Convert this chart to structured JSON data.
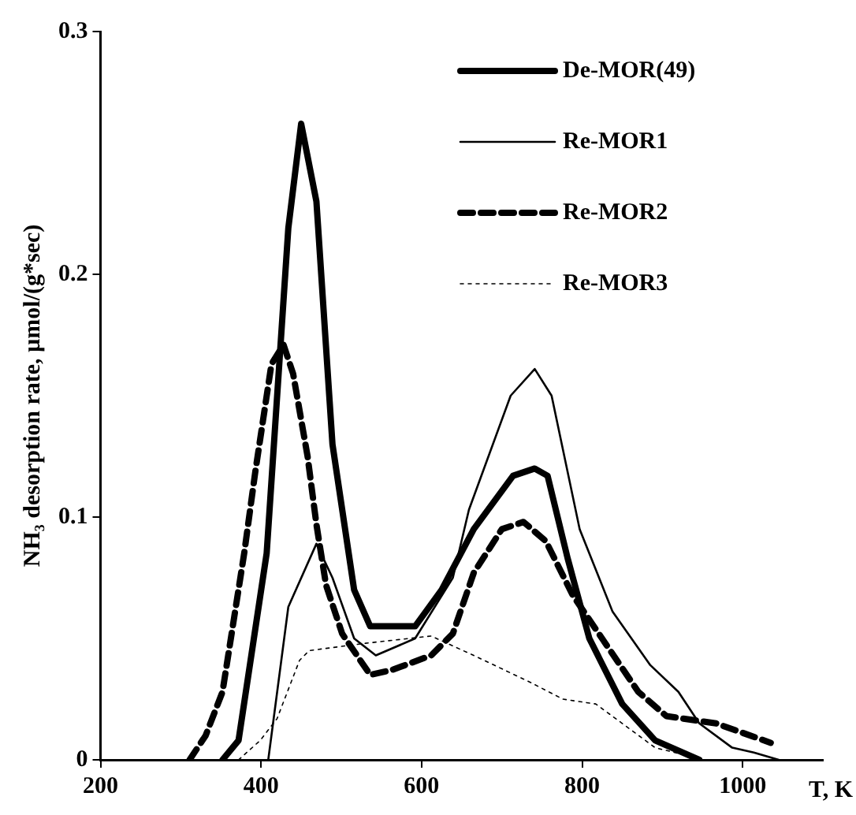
{
  "chart_data": {
    "type": "line",
    "xlabel": "T, K",
    "ylabel": "NH₃ desorption rate, µmol/(g*sec)",
    "xlim": [
      200,
      1100
    ],
    "xticks": [
      200,
      400,
      600,
      800,
      1000
    ],
    "ylim": [
      0,
      0.3
    ],
    "yticks": [
      0,
      0.1,
      0.2,
      0.3
    ],
    "grid": false,
    "legend": "top right",
    "marker": "none",
    "series": [
      {
        "name": "De-MOR(49)",
        "color": "#000000",
        "line_style": "solid",
        "x": [
          352,
          372,
          407,
          434,
          450,
          469,
          489,
          516,
          536,
          592,
          625,
          665,
          714,
          741,
          757,
          782,
          809,
          850,
          891,
          946
        ],
        "values": [
          0,
          0.008,
          0.085,
          0.219,
          0.262,
          0.23,
          0.13,
          0.07,
          0.055,
          0.055,
          0.07,
          0.095,
          0.117,
          0.12,
          0.117,
          0.083,
          0.05,
          0.023,
          0.008,
          0
        ]
      },
      {
        "name": "Re-MOR1",
        "color": "#000000",
        "line_style": "solid",
        "x": [
          409,
          434,
          469,
          489,
          516,
          543,
          592,
          639,
          659,
          711,
          741,
          762,
          797,
          838,
          885,
          920,
          946,
          987,
          1014,
          1045
        ],
        "values": [
          0,
          0.063,
          0.089,
          0.075,
          0.05,
          0.043,
          0.05,
          0.075,
          0.103,
          0.15,
          0.161,
          0.15,
          0.095,
          0.061,
          0.039,
          0.028,
          0.015,
          0.005,
          0.003,
          0
        ]
      },
      {
        "name": "Re-MOR2",
        "color": "#000000",
        "line_style": "dashed",
        "x": [
          311,
          331,
          352,
          379,
          393,
          413,
          428,
          440,
          458,
          469,
          481,
          501,
          536,
          563,
          612,
          639,
          665,
          700,
          727,
          755,
          788,
          829,
          870,
          905,
          967,
          1035
        ],
        "values": [
          0,
          0.01,
          0.028,
          0.085,
          0.119,
          0.163,
          0.171,
          0.159,
          0.125,
          0.097,
          0.072,
          0.052,
          0.035,
          0.037,
          0.043,
          0.052,
          0.077,
          0.095,
          0.098,
          0.09,
          0.068,
          0.048,
          0.028,
          0.018,
          0.015,
          0.007
        ]
      },
      {
        "name": "Re-MOR3",
        "color": "#000000",
        "line_style": "dotted",
        "x": [
          372,
          399,
          420,
          448,
          460,
          530,
          612,
          665,
          735,
          776,
          817,
          850,
          891,
          940
        ],
        "values": [
          0,
          0.008,
          0.017,
          0.041,
          0.045,
          0.048,
          0.051,
          0.043,
          0.032,
          0.025,
          0.023,
          0.015,
          0.005,
          0.001
        ]
      }
    ]
  }
}
